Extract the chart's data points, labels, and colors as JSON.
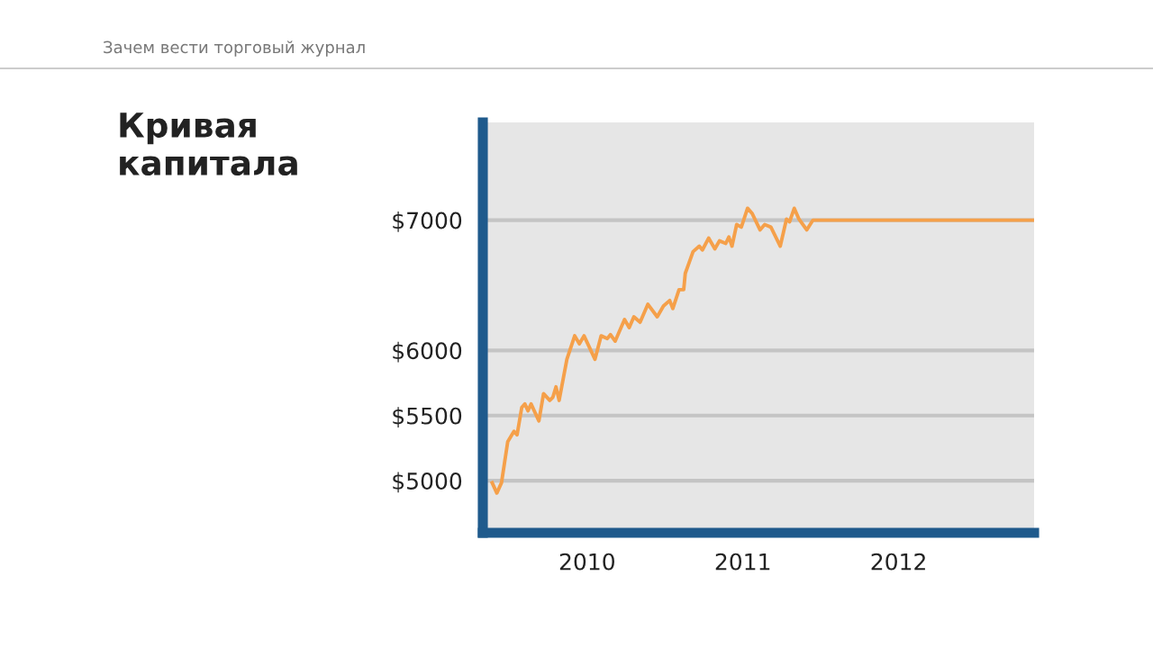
{
  "chart_data": {
    "type": "line",
    "title": "Кривая\nкапитала",
    "subtitle": "Зачем вести торговый журнал",
    "xlim": [
      2009.33,
      2012.87
    ],
    "xticks": [
      2010,
      2011,
      2012
    ],
    "ylim": [
      4600,
      7750
    ],
    "yticks": [
      {
        "value": 5000,
        "label": "$5000"
      },
      {
        "value": 5500,
        "label": "$5500"
      },
      {
        "value": 6000,
        "label": "$6000"
      },
      {
        "value": 7000,
        "label": "$7000"
      }
    ],
    "grid": "y",
    "marker": "none",
    "line_style": "solid",
    "series": [
      {
        "color": "#f5a04a",
        "x": [
          2009.39,
          2009.42,
          2009.45,
          2009.49,
          2009.53,
          2009.55,
          2009.58,
          2009.6,
          2009.62,
          2009.64,
          2009.69,
          2009.72,
          2009.76,
          2009.78,
          2009.8,
          2009.82,
          2009.87,
          2009.92,
          2009.95,
          2009.98,
          2010.05,
          2010.09,
          2010.13,
          2010.15,
          2010.18,
          2010.24,
          2010.27,
          2010.3,
          2010.34,
          2010.39,
          2010.45,
          2010.49,
          2010.53,
          2010.55,
          2010.59,
          2010.62,
          2010.63,
          2010.68,
          2010.72,
          2010.74,
          2010.78,
          2010.82,
          2010.85,
          2010.89,
          2010.91,
          2010.93,
          2010.96,
          2010.99,
          2011.03,
          2011.06,
          2011.11,
          2011.14,
          2011.18,
          2011.24,
          2011.28,
          2011.3,
          2011.33,
          2011.36,
          2011.41,
          2011.45,
          2012.87
        ],
        "values": [
          4984,
          4905,
          4984,
          5300,
          5379,
          5352,
          5562,
          5589,
          5537,
          5589,
          5458,
          5668,
          5616,
          5641,
          5720,
          5616,
          5932,
          6112,
          6050,
          6112,
          5932,
          6112,
          6091,
          6121,
          6071,
          6237,
          6175,
          6258,
          6216,
          6354,
          6258,
          6341,
          6383,
          6321,
          6466,
          6466,
          6591,
          6758,
          6800,
          6771,
          6862,
          6779,
          6841,
          6821,
          6871,
          6800,
          6966,
          6946,
          7091,
          7050,
          6925,
          6966,
          6946,
          6800,
          7008,
          6987,
          7091,
          7008,
          6925,
          7000,
          7000
        ]
      }
    ]
  }
}
